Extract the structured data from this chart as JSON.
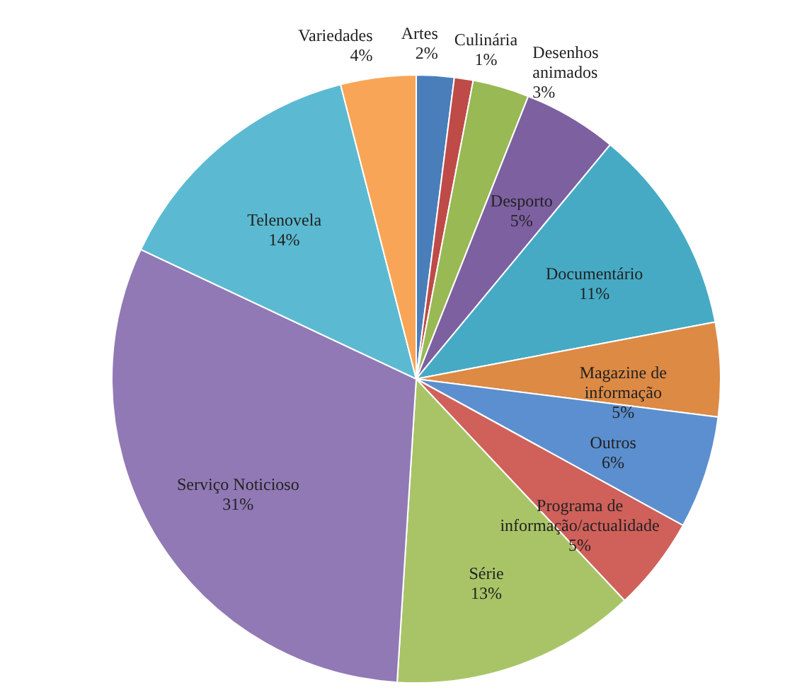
{
  "chart_data": {
    "type": "pie",
    "categories": [
      "Artes",
      "Culinária",
      "Desenhos animados",
      "Desporto",
      "Documentário",
      "Magazine de informação",
      "Outros",
      "Programa de informação/actualidade",
      "Série",
      "Serviço Noticioso",
      "Telenovela",
      "Variedades"
    ],
    "values": [
      2,
      1,
      3,
      5,
      11,
      5,
      6,
      5,
      13,
      31,
      14,
      4
    ],
    "value_labels": [
      "2%",
      "1%",
      "3%",
      "5%",
      "11%",
      "5%",
      "6%",
      "5%",
      "13%",
      "31%",
      "14%",
      "4%"
    ],
    "colors": [
      "#4a7ebb",
      "#be4b48",
      "#98b954",
      "#7d60a0",
      "#46aac5",
      "#dd8a45",
      "#5b8fcf",
      "#d0605a",
      "#a9c467",
      "#9179b5",
      "#5bbad1",
      "#f9a557"
    ]
  }
}
